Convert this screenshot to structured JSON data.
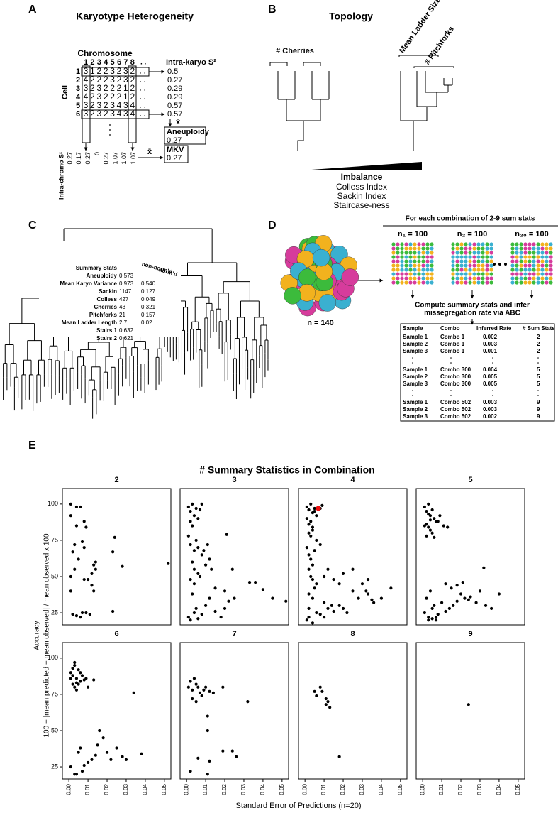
{
  "panel_labels": [
    "A",
    "B",
    "C",
    "D",
    "E"
  ],
  "panel_a": {
    "title": "Karyotype Heterogeneity",
    "column_header": "Chromosome",
    "columns": [
      "1",
      "2",
      "3",
      "4",
      "5",
      "6",
      "7",
      "8"
    ],
    "ellipsis": ". .",
    "row_header": "Cell",
    "rows": [
      {
        "label": "1",
        "cells": [
          3,
          1,
          2,
          2,
          3,
          2,
          3,
          2
        ]
      },
      {
        "label": "2",
        "cells": [
          4,
          2,
          2,
          2,
          3,
          2,
          3,
          2
        ]
      },
      {
        "label": "3",
        "cells": [
          3,
          2,
          3,
          2,
          2,
          2,
          1,
          2
        ]
      },
      {
        "label": "4",
        "cells": [
          4,
          2,
          3,
          2,
          2,
          2,
          1,
          2
        ]
      },
      {
        "label": "5",
        "cells": [
          3,
          2,
          3,
          2,
          3,
          4,
          3,
          4
        ]
      },
      {
        "label": "6",
        "cells": [
          3,
          2,
          3,
          2,
          3,
          4,
          3,
          4
        ]
      }
    ],
    "colors": {
      "1": "#2030c0",
      "3": "#e0202a",
      "4": "#2aa02a"
    },
    "intra_karyo_label": "Intra-karyo S²",
    "intra_karyo": [
      0.5,
      0.27,
      0.29,
      0.29,
      0.57,
      0.57
    ],
    "mean_symbol": "x̄",
    "aneuploidy_label": "Aneuploidy",
    "aneuploidy": 0.27,
    "mkv_label": "MKV",
    "mkv": 0.27,
    "intra_chromo_label": "Intra-chromo S²",
    "intra_chromo": [
      0.27,
      0.17,
      0.27,
      0,
      0.27,
      1.07,
      1.07,
      1.07
    ]
  },
  "panel_b": {
    "title": "Topology",
    "cherries": "# Cherries",
    "ladder": "Mean Ladder Size",
    "pitchforks": "# Pitchforks",
    "imbalance": "Imbalance",
    "imbalance_measures": [
      "Colless Index",
      "Sackin Index",
      "Staircase-ness"
    ]
  },
  "panel_c": {
    "header": "Summary Stats",
    "col1": "non-norm'd",
    "col2": "norm'd",
    "rows": [
      [
        "Aneuploidy",
        "0.573",
        null
      ],
      [
        "Mean Karyo Variance",
        "0.973",
        "0.540"
      ],
      [
        "Sackin",
        "1147",
        "0.127"
      ],
      [
        "Colless",
        "427",
        "0.049"
      ],
      [
        "Cherries",
        "43",
        "0.321"
      ],
      [
        "Pitchforks",
        "21",
        "0.157"
      ],
      [
        "Mean Ladder Length",
        "2.7",
        "0.02"
      ],
      [
        "Stairs 1",
        "0.632",
        null
      ],
      [
        "Stairs 2",
        "0.621",
        null
      ]
    ]
  },
  "panel_d": {
    "header": "For each combination of 2-9 sum stats",
    "sample_size": "n = 140",
    "subsamples": [
      "n₁ = 100",
      "n₂ = 100",
      "n₂₀ = 100"
    ],
    "step": [
      "Compute summary stats and infer",
      "missegregation rate via ABC"
    ],
    "table": {
      "columns": [
        "Sample",
        "Combo",
        "Inferred Rate",
        "# Sum Stats"
      ],
      "groups": [
        [
          [
            "Sample 1",
            "Combo 1",
            "0.002",
            "2"
          ],
          [
            "Sample 2",
            "Combo 1",
            "0.003",
            "2"
          ],
          [
            "Sample 3",
            "Combo 1",
            "0.001",
            "2"
          ]
        ],
        [
          [
            "Sample 1",
            "Combo 300",
            "0.004",
            "5"
          ],
          [
            "Sample 2",
            "Combo 300",
            "0.005",
            "5"
          ],
          [
            "Sample 3",
            "Combo 300",
            "0.005",
            "5"
          ]
        ],
        [
          [
            "Sample 1",
            "Combo 502",
            "0.003",
            "9"
          ],
          [
            "Sample 2",
            "Combo 502",
            "0.003",
            "9"
          ],
          [
            "Sample 3",
            "Combo 502",
            "0.002",
            "9"
          ]
        ]
      ]
    }
  },
  "chart_data": {
    "type": "scatter",
    "title": "# Summary Statistics in Combination",
    "x_label": "Standard Error of Predictions (n=20)",
    "y_label": [
      "Accuracy",
      "100 − |mean predicted − mean observed| / mean observed x 100"
    ],
    "color": "#000000",
    "xlim": [
      -0.0034,
      0.0534
    ],
    "ylim": [
      16.7,
      110.7
    ],
    "xticks": [
      {
        "value": 0,
        "label": "0.00"
      },
      {
        "value": 0.01,
        "label": "0.01"
      },
      {
        "value": 0.02,
        "label": "0.02"
      },
      {
        "value": 0.03,
        "label": "0.03"
      },
      {
        "value": 0.04,
        "label": "0.04"
      },
      {
        "value": 0.05,
        "label": "0.05"
      }
    ],
    "yticks": [
      25,
      50,
      75,
      100
    ],
    "facets": [
      {
        "title": "2",
        "x": [
          0.001,
          0.001,
          0.004,
          0.006,
          0.004,
          0.002,
          0.003,
          0.005,
          0.007,
          0.008,
          0.009,
          0.008,
          0.003,
          0.001,
          0.001,
          0.008,
          0.01,
          0.012,
          0.013,
          0.014,
          0.012,
          0.013,
          0.014,
          0.002,
          0.004,
          0.006,
          0.007,
          0.009,
          0.011,
          0.023,
          0.024,
          0.023,
          0.028,
          0.052
        ],
        "y": [
          100,
          92,
          98,
          98,
          85,
          67,
          72,
          62,
          74,
          88,
          84,
          70,
          55,
          50,
          40,
          48,
          48,
          52,
          58,
          60,
          44,
          40,
          55,
          24,
          23,
          22,
          25,
          25,
          24,
          67,
          77,
          26,
          57,
          59
        ]
      },
      {
        "title": "3",
        "x": [
          0.001,
          0.002,
          0.003,
          0.004,
          0.005,
          0.002,
          0.003,
          0.006,
          0.007,
          0.008,
          0.001,
          0.002,
          0.004,
          0.005,
          0.006,
          0.003,
          0.004,
          0.006,
          0.008,
          0.01,
          0.011,
          0.012,
          0.002,
          0.004,
          0.007,
          0.009,
          0.013,
          0.015,
          0.02,
          0.021,
          0.024,
          0.001,
          0.002,
          0.004,
          0.005,
          0.006,
          0.008,
          0.01,
          0.012,
          0.015,
          0.018,
          0.02,
          0.022,
          0.025,
          0.033,
          0.036,
          0.04,
          0.045,
          0.052,
          0.003
        ],
        "y": [
          98,
          95,
          100,
          92,
          97,
          88,
          85,
          90,
          96,
          100,
          78,
          72,
          68,
          75,
          70,
          60,
          55,
          52,
          65,
          58,
          72,
          62,
          48,
          45,
          50,
          68,
          55,
          42,
          40,
          79,
          55,
          22,
          20,
          25,
          28,
          21,
          24,
          30,
          35,
          26,
          22,
          28,
          33,
          35,
          46,
          46,
          41,
          35,
          33,
          38
        ]
      },
      {
        "title": "4",
        "x": [
          0.001,
          0.002,
          0.003,
          0.004,
          0.005,
          0.006,
          0.001,
          0.002,
          0.003,
          0.004,
          0.005,
          0.008,
          0.009,
          0.002,
          0.003,
          0.004,
          0.006,
          0.001,
          0.002,
          0.003,
          0.004,
          0.005,
          0.002,
          0.003,
          0.004,
          0.006,
          0.008,
          0.002,
          0.004,
          0.01,
          0.012,
          0.015,
          0.018,
          0.02,
          0.025,
          0.03,
          0.033,
          0.001,
          0.002,
          0.004,
          0.006,
          0.008,
          0.01,
          0.012,
          0.015,
          0.018,
          0.022,
          0.028,
          0.032,
          0.036,
          0.04,
          0.045,
          0.02,
          0.025,
          0.033,
          0.01,
          0.014,
          0.005,
          0.002,
          0.035
        ],
        "y": [
          98,
          96,
          100,
          94,
          97,
          92,
          90,
          86,
          88,
          84,
          95,
          97,
          99,
          80,
          78,
          82,
          75,
          70,
          65,
          62,
          58,
          68,
          55,
          50,
          48,
          45,
          72,
          38,
          35,
          50,
          55,
          48,
          45,
          52,
          40,
          45,
          38,
          20,
          22,
          18,
          25,
          24,
          22,
          28,
          26,
          30,
          25,
          35,
          40,
          32,
          35,
          42,
          28,
          55,
          48,
          32,
          30,
          42,
          28,
          34
        ],
        "highlight": {
          "x": 0.007,
          "y": 97,
          "color": "#ee1111"
        }
      },
      {
        "title": "5",
        "x": [
          0.001,
          0.002,
          0.003,
          0.004,
          0.005,
          0.006,
          0.007,
          0.002,
          0.003,
          0.004,
          0.005,
          0.001,
          0.002,
          0.003,
          0.006,
          0.008,
          0.009,
          0.011,
          0.013,
          0.004,
          0.001,
          0.003,
          0.005,
          0.007,
          0.002,
          0.004,
          0.006,
          0.008,
          0.01,
          0.012,
          0.014,
          0.016,
          0.018,
          0.02,
          0.022,
          0.025,
          0.028,
          0.03,
          0.033,
          0.036,
          0.04,
          0.032,
          0.012,
          0.015,
          0.018,
          0.021,
          0.024,
          0.003,
          0.005,
          0.007
        ],
        "y": [
          98,
          95,
          100,
          92,
          96,
          90,
          88,
          86,
          84,
          82,
          80,
          85,
          78,
          93,
          77,
          88,
          92,
          85,
          84,
          89,
          25,
          22,
          28,
          20,
          35,
          40,
          30,
          24,
          32,
          26,
          28,
          30,
          33,
          38,
          35,
          36,
          32,
          40,
          30,
          28,
          38,
          56,
          45,
          42,
          44,
          46,
          34,
          20,
          21,
          22
        ]
      },
      {
        "title": "6",
        "x": [
          0.001,
          0.002,
          0.003,
          0.004,
          0.005,
          0.006,
          0.007,
          0.008,
          0.002,
          0.003,
          0.004,
          0.005,
          0.006,
          0.001,
          0.002,
          0.003,
          0.004,
          0.009,
          0.013,
          0.01,
          0.034,
          0.001,
          0.003,
          0.005,
          0.006,
          0.007,
          0.01,
          0.012,
          0.014,
          0.016,
          0.018,
          0.02,
          0.022,
          0.025,
          0.028,
          0.03,
          0.038,
          0.004,
          0.008,
          0.015
        ],
        "y": [
          90,
          88,
          95,
          86,
          92,
          84,
          88,
          85,
          82,
          80,
          78,
          82,
          90,
          86,
          93,
          97,
          83,
          86,
          85,
          80,
          76,
          25,
          20,
          35,
          38,
          22,
          28,
          30,
          33,
          50,
          45,
          35,
          30,
          38,
          32,
          30,
          34,
          20,
          26,
          40
        ]
      },
      {
        "title": "7",
        "x": [
          0.001,
          0.002,
          0.003,
          0.004,
          0.005,
          0.006,
          0.007,
          0.008,
          0.009,
          0.01,
          0.012,
          0.014,
          0.019,
          0.003,
          0.005,
          0.032,
          0.011,
          0.011,
          0.002,
          0.006,
          0.011,
          0.012,
          0.019,
          0.024,
          0.026
        ],
        "y": [
          80,
          84,
          78,
          86,
          82,
          80,
          76,
          74,
          78,
          80,
          77,
          76,
          80,
          72,
          70,
          70,
          60,
          50,
          22,
          31,
          20,
          29,
          36,
          36,
          32
        ]
      },
      {
        "title": "8",
        "x": [
          0.005,
          0.006,
          0.008,
          0.009,
          0.011,
          0.012,
          0.013,
          0.011,
          0.018
        ],
        "y": [
          77,
          74,
          80,
          77,
          72,
          70,
          66,
          68,
          32
        ]
      },
      {
        "title": "9",
        "x": [
          0.024
        ],
        "y": [
          68
        ]
      }
    ]
  }
}
